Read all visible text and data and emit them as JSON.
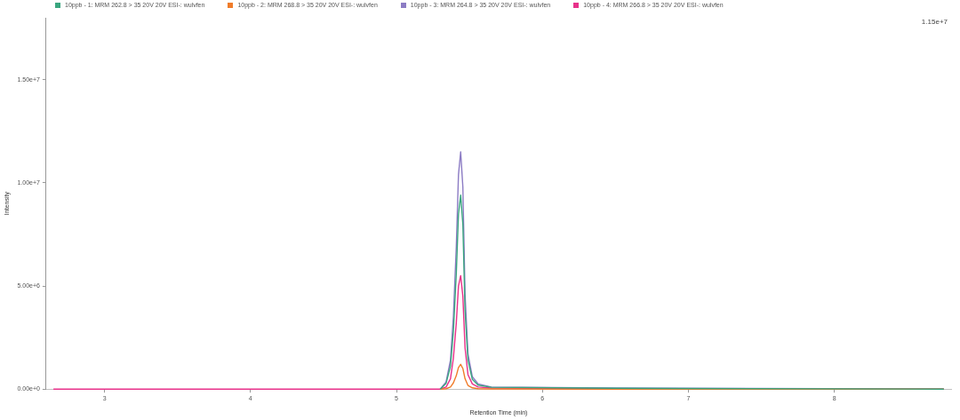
{
  "chart_data": {
    "type": "line",
    "xlabel": "Retention Time (min)",
    "ylabel": "Intensity",
    "annotations": [
      "1.15e+7"
    ],
    "x": [
      2.65,
      5.3,
      5.34,
      5.37,
      5.39,
      5.41,
      5.425,
      5.44,
      5.455,
      5.47,
      5.49,
      5.52,
      5.56,
      5.65,
      6.5,
      8.75
    ],
    "series": [
      {
        "name": "10ppb - 1: MRM 262.8 > 35 20V 20V ESI-: wulvfen",
        "color": "#3aa67f",
        "values": [
          null,
          0,
          280000,
          1100000,
          2800000,
          5600000,
          8500000,
          9400000,
          8000000,
          3800000,
          1400000,
          470000,
          190000,
          90000,
          40000,
          0
        ]
      },
      {
        "name": "10ppb - 2: MRM 268.8 > 35 20V 20V ESI-: wulvfen",
        "color": "#f07c2a",
        "values": [
          null,
          0,
          20000,
          100000,
          300000,
          650000,
          1050000,
          1200000,
          1000000,
          500000,
          180000,
          60000,
          20000,
          10000,
          0,
          0
        ]
      },
      {
        "name": "10ppb - 3: MRM 264.8 > 35 20V 20V ESI-: wulvfen",
        "color": "#8c7cc4",
        "values": [
          null,
          0,
          350000,
          1400000,
          3500000,
          6900000,
          10400000,
          11500000,
          9800000,
          4600000,
          1700000,
          600000,
          250000,
          100000,
          50000,
          0
        ]
      },
      {
        "name": "10ppb - 4: MRM 266.8 > 35 20V 20V ESI-: wulvfen",
        "color": "#e8318a",
        "values": [
          0,
          0,
          100000,
          500000,
          1500000,
          3200000,
          5000000,
          5500000,
          4500000,
          2000000,
          700000,
          250000,
          100000,
          50000,
          20000,
          0
        ]
      }
    ],
    "xlim": [
      2.6,
      8.8
    ],
    "xticks": [
      3,
      4,
      5,
      6,
      7,
      8
    ],
    "ylim": [
      0,
      18000000
    ],
    "yticks": [
      {
        "value": 0,
        "label": "0.00e+0"
      },
      {
        "value": 5000000,
        "label": "5.00e+6"
      },
      {
        "value": 10000000,
        "label": "1.00e+7"
      },
      {
        "value": 15000000,
        "label": "1.50e+7"
      }
    ],
    "grid": false,
    "legend": "top left",
    "marker": "none",
    "line_style": "solid"
  }
}
